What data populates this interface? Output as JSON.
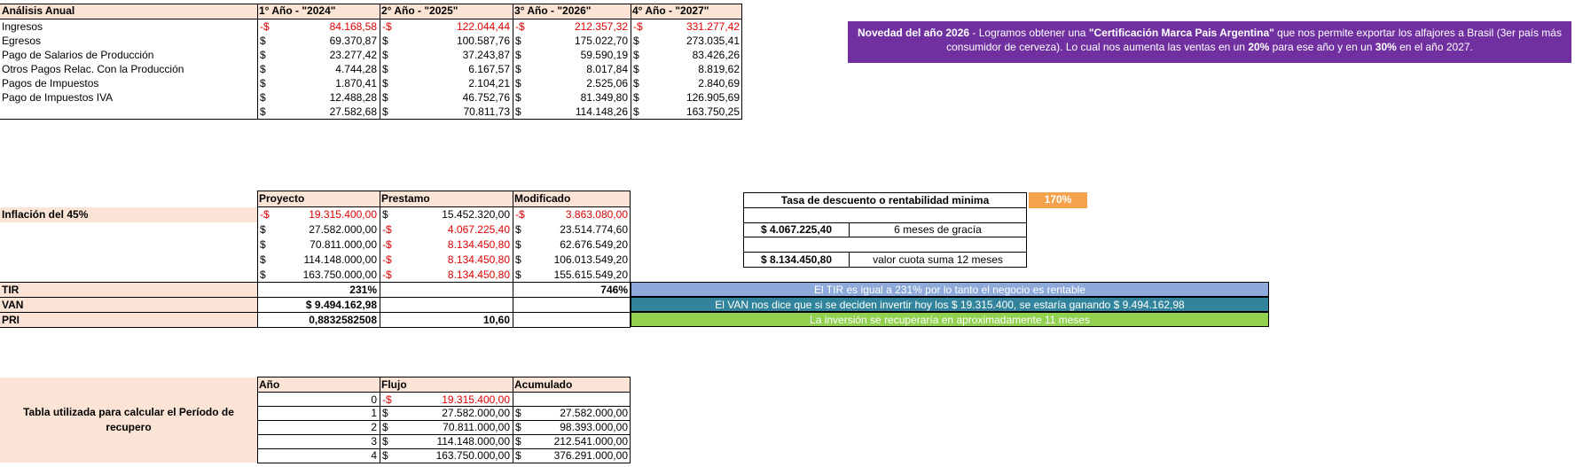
{
  "annual": {
    "title": "Análisis Anual",
    "years": [
      "1° Año - \"2024\"",
      "2° Año - \"2025\"",
      "3° Año - \"2026\"",
      "4° Año - \"2027\""
    ],
    "rows": [
      {
        "label": "Ingresos",
        "values": [
          "84.168,58",
          "122.044,44",
          "212.357,32",
          "331.277,42"
        ],
        "neg": true
      },
      {
        "label": "Egresos",
        "values": [
          "69.370,87",
          "100.587,76",
          "175.022,70",
          "273.035,41"
        ],
        "neg": false
      },
      {
        "label": "Pago de Salarios de Producción",
        "values": [
          "23.277,42",
          "37.243,87",
          "59.590,19",
          "83.426,26"
        ],
        "neg": false
      },
      {
        "label": "Otros Pagos Relac. Con la Producción",
        "values": [
          "4.744,28",
          "6.167,57",
          "8.017,84",
          "8.819,62"
        ],
        "neg": false
      },
      {
        "label": "Pagos de Impuestos",
        "values": [
          "1.870,41",
          "2.104,21",
          "2.525,06",
          "2.840,69"
        ],
        "neg": false
      },
      {
        "label": "Pago de Impuestos IVA",
        "values": [
          "12.488,28",
          "46.752,76",
          "81.349,80",
          "126.905,69"
        ],
        "neg": false
      },
      {
        "label": "",
        "values": [
          "27.582,68",
          "70.811,73",
          "114.148,26",
          "163.750,25"
        ],
        "neg": false
      }
    ],
    "currency": "$",
    "neg_currency": "-$"
  },
  "novelty": {
    "lead": "Novedad del año 2026",
    "part1": " - Logramos obtener una ",
    "cert": "\"Certificación Marca Pais Argentina\"",
    "part2": " que nos permite exportar  los alfajores a Brasil (3er país más consumidor de cerveza). Lo cual nos aumenta las ventas en un ",
    "pct1": "20%",
    "part3": " para ese año y en un ",
    "pct2": "30%",
    "part4": " en el año 2027."
  },
  "projection": {
    "headers": [
      "Proyecto",
      "Prestamo",
      "Modificado"
    ],
    "inflation_label": "Inflación del 45%",
    "rows": [
      {
        "p": "19.315.400,00",
        "pneg": true,
        "l": "15.452.320,00",
        "lneg": false,
        "m": "3.863.080,00",
        "mneg": true
      },
      {
        "p": "27.582.000,00",
        "pneg": false,
        "l": "4.067.225,40",
        "lneg": true,
        "m": "23.514.774,60",
        "mneg": false
      },
      {
        "p": "70.811.000,00",
        "pneg": false,
        "l": "8.134.450,80",
        "lneg": true,
        "m": "62.676.549,20",
        "mneg": false
      },
      {
        "p": "114.148.000,00",
        "pneg": false,
        "l": "8.134.450,80",
        "lneg": true,
        "m": "106.013.549,20",
        "mneg": false
      },
      {
        "p": "163.750.000,00",
        "pneg": false,
        "l": "8.134.450,80",
        "lneg": true,
        "m": "155.615.549,20",
        "mneg": false
      }
    ],
    "tir_label": "TIR",
    "tir_value": "231%",
    "tir_mod": "746%",
    "van_label": "VAN",
    "van_value": "$ 9.494.162,98",
    "pri_label": "PRI",
    "pri_value": "0,8832582508",
    "pri_months": "10,60",
    "tir_note": "El TIR es igual a 231% por lo tanto el negocio es rentable",
    "van_note": "El VAN nos dice que si se deciden invertir hoy los $ 19.315.400, se estaría ganando $ 9.494.162,98",
    "pri_note": "La inversión se recuperaría en aproximadamente 11 meses",
    "colors": {
      "tir": "#8eaadb",
      "van": "#31849b",
      "pri": "#92d050"
    }
  },
  "rate": {
    "label": "Tasa de descuento o rentabilidad minima",
    "value": "170%",
    "grace_amount": "$ 4.067.225,40",
    "grace_label": "6 meses de gracía",
    "quota_amount": "$ 8.134.450,80",
    "quota_label": "valor cuota suma 12 meses"
  },
  "recovery": {
    "label": "Tabla utilizada para calcular el Período de recupero",
    "headers": [
      "Año",
      "Flujo",
      "Acumulado"
    ],
    "rows": [
      {
        "year": "0",
        "flow": "19.315.400,00",
        "fneg": true,
        "acc": ""
      },
      {
        "year": "1",
        "flow": "27.582.000,00",
        "fneg": false,
        "acc": "27.582.000,00"
      },
      {
        "year": "2",
        "flow": "70.811.000,00",
        "fneg": false,
        "acc": "98.393.000,00"
      },
      {
        "year": "3",
        "flow": "114.148.000,00",
        "fneg": false,
        "acc": "212.541.000,00"
      },
      {
        "year": "4",
        "flow": "163.750.000,00",
        "fneg": false,
        "acc": "376.291.000,00"
      }
    ]
  }
}
